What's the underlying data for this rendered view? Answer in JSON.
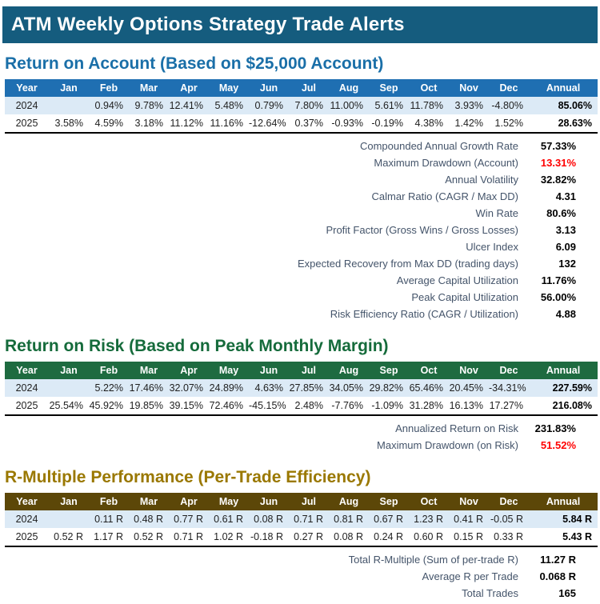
{
  "title": "ATM Weekly Options Strategy Trade Alerts",
  "colors": {
    "title_bar_bg": "#155c7e",
    "negative_value": "#ff0000",
    "highlight_row_bg": "#dceaf6",
    "stat_label": "#44546a"
  },
  "columns": [
    "Year",
    "Jan",
    "Feb",
    "Mar",
    "Apr",
    "May",
    "Jun",
    "Jul",
    "Aug",
    "Sep",
    "Oct",
    "Nov",
    "Dec",
    "Annual"
  ],
  "sections": [
    {
      "heading": "Return on Account (Based on $25,000 Account)",
      "theme": {
        "heading_color": "#1a6fa8",
        "header_bg": "#1f6fb2"
      },
      "rows": [
        {
          "year": "2024",
          "months": [
            "",
            "0.94%",
            "9.78%",
            "12.41%",
            "5.48%",
            "0.79%",
            "7.80%",
            "11.00%",
            "5.61%",
            "11.78%",
            "3.93%",
            "-4.80%"
          ],
          "annual": "85.06%",
          "highlight": true
        },
        {
          "year": "2025",
          "months": [
            "3.58%",
            "4.59%",
            "3.18%",
            "11.12%",
            "11.16%",
            "-12.64%",
            "0.37%",
            "-0.93%",
            "-0.19%",
            "4.38%",
            "1.42%",
            "1.52%"
          ],
          "annual": "28.63%",
          "highlight": false
        }
      ],
      "stats": [
        {
          "label": "Compounded Annual Growth Rate",
          "value": "57.33%",
          "red": false
        },
        {
          "label": "Maximum Drawdown (Account)",
          "value": "13.31%",
          "red": true
        },
        {
          "label": "Annual Volatility",
          "value": "32.82%",
          "red": false
        },
        {
          "label": "Calmar Ratio (CAGR / Max DD)",
          "value": "4.31",
          "red": false
        },
        {
          "label": "Win Rate",
          "value": "80.6%",
          "red": false
        },
        {
          "label": "Profit Factor (Gross Wins / Gross Losses)",
          "value": "3.13",
          "red": false
        },
        {
          "label": "Ulcer Index",
          "value": "6.09",
          "red": false
        },
        {
          "label": "Expected Recovery from Max DD (trading days)",
          "value": "132",
          "red": false
        },
        {
          "label": "Average Capital Utilization",
          "value": "11.76%",
          "red": false
        },
        {
          "label": "Peak Capital Utilization",
          "value": "56.00%",
          "red": false
        },
        {
          "label": "Risk Efficiency Ratio (CAGR / Utilization)",
          "value": "4.88",
          "red": false
        }
      ]
    },
    {
      "heading": "Return on Risk (Based on Peak Monthly Margin)",
      "theme": {
        "heading_color": "#156b3b",
        "header_bg": "#1e6b40"
      },
      "rows": [
        {
          "year": "2024",
          "months": [
            "",
            "5.22%",
            "17.46%",
            "32.07%",
            "24.89%",
            "4.63%",
            "27.85%",
            "34.05%",
            "29.82%",
            "65.46%",
            "20.45%",
            "-34.31%"
          ],
          "annual": "227.59%",
          "highlight": true
        },
        {
          "year": "2025",
          "months": [
            "25.54%",
            "45.92%",
            "19.85%",
            "39.15%",
            "72.46%",
            "-45.15%",
            "2.48%",
            "-7.76%",
            "-1.09%",
            "31.28%",
            "16.13%",
            "17.27%"
          ],
          "annual": "216.08%",
          "highlight": false
        }
      ],
      "stats": [
        {
          "label": "Annualized Return on Risk",
          "value": "231.83%",
          "red": false
        },
        {
          "label": "Maximum Drawdown (on Risk)",
          "value": "51.52%",
          "red": true
        }
      ]
    },
    {
      "heading": "R-Multiple Performance (Per-Trade Efficiency)",
      "theme": {
        "heading_color": "#9a7800",
        "header_bg": "#5c4708"
      },
      "rows": [
        {
          "year": "2024",
          "months": [
            "",
            "0.11 R",
            "0.48 R",
            "0.77 R",
            "0.61 R",
            "0.08 R",
            "0.71 R",
            "0.81 R",
            "0.67 R",
            "1.23 R",
            "0.41 R",
            "-0.05 R"
          ],
          "annual": "5.84 R",
          "highlight": true
        },
        {
          "year": "2025",
          "months": [
            "0.52 R",
            "1.17 R",
            "0.52 R",
            "0.71 R",
            "1.02 R",
            "-0.18 R",
            "0.27 R",
            "0.08 R",
            "0.24 R",
            "0.60 R",
            "0.15 R",
            "0.33 R"
          ],
          "annual": "5.43 R",
          "highlight": false
        }
      ],
      "stats": [
        {
          "label": "Total R-Multiple (Sum of per-trade R)",
          "value": "11.27 R",
          "red": false
        },
        {
          "label": "Average R per Trade",
          "value": "0.068 R",
          "red": false
        },
        {
          "label": "Total Trades",
          "value": "165",
          "red": false
        }
      ]
    }
  ]
}
